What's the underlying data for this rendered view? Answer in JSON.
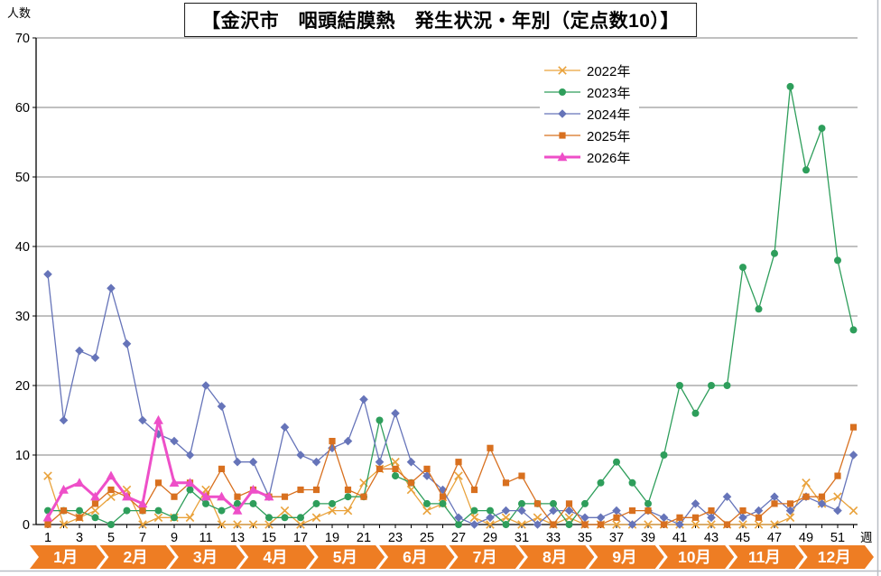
{
  "chart_data": {
    "type": "line",
    "title": "【金沢市　咽頭結膜熱　発生状況・年別（定点数10）】",
    "ylabel": "人数",
    "xlabel": "週",
    "ylim": [
      0,
      70
    ],
    "yticks": [
      0,
      10,
      20,
      30,
      40,
      50,
      60,
      70
    ],
    "weeks": 52,
    "xtick_labels": [
      1,
      3,
      5,
      7,
      9,
      11,
      13,
      15,
      17,
      19,
      21,
      23,
      25,
      27,
      29,
      31,
      33,
      35,
      37,
      39,
      41,
      43,
      45,
      47,
      49,
      51
    ],
    "grid": "horizontal",
    "legend_position": "upper-center-right",
    "months": [
      "1月",
      "2月",
      "3月",
      "4月",
      "5月",
      "6月",
      "7月",
      "8月",
      "9月",
      "10月",
      "11月",
      "12月"
    ],
    "month_band_color": "#EE7D23",
    "axis_color": "#000000",
    "gridline_color": "#808080",
    "series": [
      {
        "name": "2022年",
        "marker": "x",
        "color": "#E9A23B",
        "linewidth": 1.3,
        "values": [
          7,
          0,
          1,
          2,
          4,
          5,
          0,
          1,
          1,
          1,
          5,
          0,
          0,
          0,
          0,
          2,
          0,
          1,
          2,
          2,
          6,
          8,
          9,
          5,
          2,
          3,
          7,
          1,
          0,
          1,
          0,
          1,
          0,
          1,
          0,
          0,
          0,
          0,
          0,
          0,
          0,
          0,
          0,
          0,
          0,
          0,
          0,
          1,
          6,
          3,
          4,
          2
        ]
      },
      {
        "name": "2023年",
        "marker": "circle",
        "color": "#2E9E5B",
        "linewidth": 1.3,
        "values": [
          2,
          2,
          2,
          1,
          0,
          2,
          2,
          2,
          1,
          5,
          3,
          2,
          3,
          3,
          1,
          1,
          1,
          3,
          3,
          4,
          4,
          15,
          7,
          6,
          3,
          3,
          0,
          2,
          2,
          0,
          3,
          3,
          3,
          0,
          3,
          6,
          9,
          6,
          3,
          10,
          20,
          16,
          20,
          20,
          37,
          31,
          39,
          63,
          51,
          57,
          38,
          28
        ]
      },
      {
        "name": "2024年",
        "marker": "diamond",
        "color": "#6674B9",
        "linewidth": 1.3,
        "values": [
          36,
          15,
          25,
          24,
          34,
          26,
          15,
          13,
          12,
          10,
          20,
          17,
          9,
          9,
          4,
          14,
          10,
          9,
          11,
          12,
          18,
          9,
          16,
          9,
          7,
          5,
          1,
          0,
          1,
          2,
          2,
          0,
          2,
          2,
          1,
          1,
          2,
          0,
          2,
          1,
          0,
          3,
          1,
          4,
          1,
          2,
          4,
          2,
          4,
          3,
          2,
          10
        ]
      },
      {
        "name": "2025年",
        "marker": "square",
        "color": "#D8701F",
        "linewidth": 1.3,
        "values": [
          0,
          2,
          1,
          3,
          5,
          4,
          2,
          6,
          4,
          6,
          4,
          8,
          4,
          5,
          4,
          4,
          5,
          5,
          12,
          5,
          4,
          8,
          8,
          6,
          8,
          4,
          9,
          5,
          11,
          6,
          7,
          3,
          0,
          3,
          0,
          0,
          1,
          2,
          2,
          0,
          1,
          1,
          2,
          0,
          2,
          1,
          3,
          3,
          4,
          4,
          7,
          14
        ]
      },
      {
        "name": "2026年",
        "marker": "triangle",
        "color": "#EE4FC8",
        "linewidth": 3,
        "values": [
          1,
          5,
          6,
          4,
          7,
          4,
          3,
          15,
          6,
          6,
          4,
          4,
          2,
          5,
          4
        ]
      }
    ]
  }
}
